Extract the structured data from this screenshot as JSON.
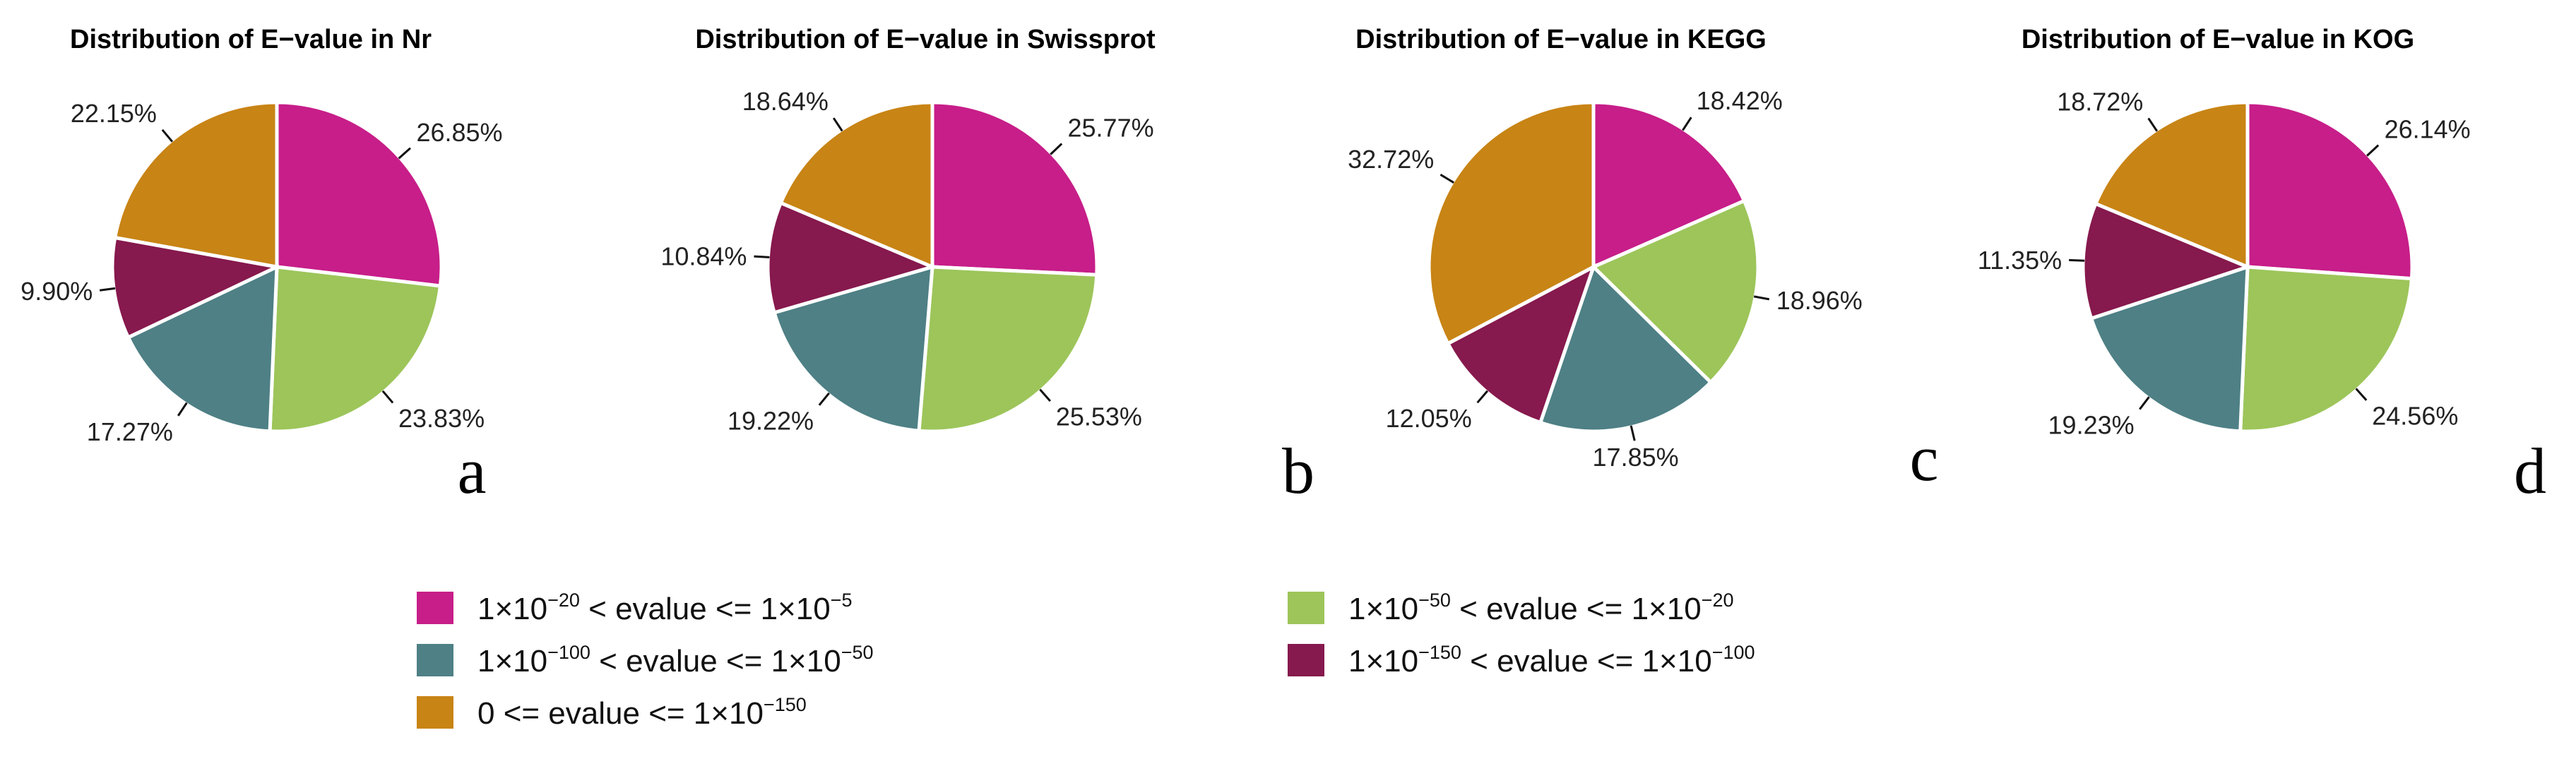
{
  "legend": [
    {
      "key": "s1",
      "color": "#C71E89",
      "parts": [
        [
          "t",
          "1×10"
        ],
        [
          "sup",
          "−20"
        ],
        [
          "t",
          " < evalue <= 1×10"
        ],
        [
          "sup",
          "−5"
        ]
      ]
    },
    {
      "key": "s2",
      "color": "#9DC55A",
      "parts": [
        [
          "t",
          "1×10"
        ],
        [
          "sup",
          "−50"
        ],
        [
          "t",
          " < evalue <= 1×10"
        ],
        [
          "sup",
          "−20"
        ]
      ]
    },
    {
      "key": "s3",
      "color": "#4E8085",
      "parts": [
        [
          "t",
          "1×10"
        ],
        [
          "sup",
          "−100"
        ],
        [
          "t",
          " < evalue <= 1×10"
        ],
        [
          "sup",
          "−50"
        ]
      ]
    },
    {
      "key": "s4",
      "color": "#86194D",
      "parts": [
        [
          "t",
          "1×10"
        ],
        [
          "sup",
          "−150"
        ],
        [
          "t",
          " < evalue <= 1×10"
        ],
        [
          "sup",
          "−100"
        ]
      ]
    },
    {
      "key": "s5",
      "color": "#C88415",
      "parts": [
        [
          "t",
          "0 <= evalue <= 1×10"
        ],
        [
          "sup",
          "−150"
        ]
      ]
    }
  ],
  "chart_data": [
    {
      "type": "pie",
      "title": "Distribution of E−value in Nr",
      "panel_label": "a",
      "categories": [
        "s1",
        "s2",
        "s3",
        "s4",
        "s5"
      ],
      "values": [
        26.85,
        23.83,
        17.27,
        9.9,
        22.15
      ],
      "labels": [
        "26.85%",
        "23.83%",
        "17.27%",
        "9.90%",
        "22.15%"
      ]
    },
    {
      "type": "pie",
      "title": "Distribution of E−value in Swissprot",
      "panel_label": "b",
      "categories": [
        "s1",
        "s2",
        "s3",
        "s4",
        "s5"
      ],
      "values": [
        25.77,
        25.53,
        19.22,
        10.84,
        18.64
      ],
      "labels": [
        "25.77%",
        "25.53%",
        "19.22%",
        "10.84%",
        "18.64%"
      ]
    },
    {
      "type": "pie",
      "title": "Distribution of E−value in KEGG",
      "panel_label": "c",
      "categories": [
        "s1",
        "s2",
        "s3",
        "s4",
        "s5"
      ],
      "values": [
        18.42,
        18.96,
        17.85,
        12.05,
        32.72
      ],
      "labels": [
        "18.42%",
        "18.96%",
        "17.85%",
        "12.05%",
        "32.72%"
      ]
    },
    {
      "type": "pie",
      "title": "Distribution of E−value in KOG",
      "panel_label": "d",
      "categories": [
        "s1",
        "s2",
        "s3",
        "s4",
        "s5"
      ],
      "values": [
        26.14,
        24.56,
        19.23,
        11.35,
        18.72
      ],
      "labels": [
        "26.14%",
        "24.56%",
        "19.23%",
        "11.35%",
        "18.72%"
      ]
    }
  ]
}
